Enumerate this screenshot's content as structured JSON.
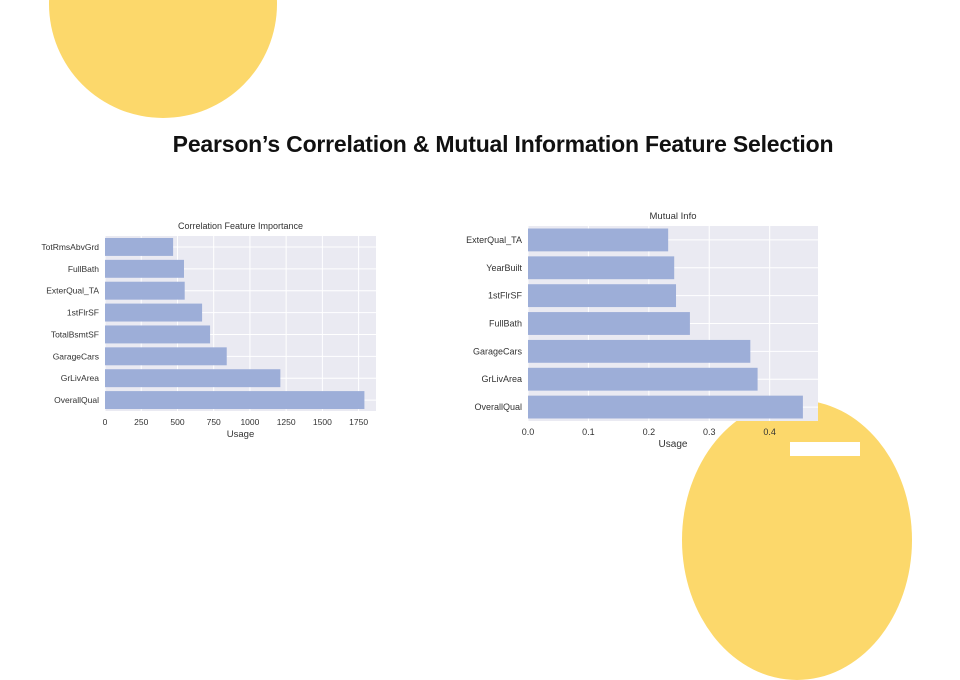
{
  "slide": {
    "title": "Pearson’s Correlation & Mutual Information Feature Selection"
  },
  "colors": {
    "accent_circle": "#fcd86b",
    "bar": "#9daed8",
    "plot_bg": "#eaeaf2",
    "grid": "#ffffff",
    "text": "#333333"
  },
  "chart_data": [
    {
      "type": "bar",
      "orientation": "horizontal",
      "title": "Correlation Feature Importance",
      "xlabel": "Usage",
      "ylabel": "",
      "categories": [
        "OverallQual",
        "GrLivArea",
        "GarageCars",
        "TotalBsmtSF",
        "1stFlrSF",
        "ExterQual_TA",
        "FullBath",
        "TotRmsAbvGrd"
      ],
      "values": [
        1790,
        1210,
        840,
        725,
        670,
        550,
        545,
        470
      ],
      "xlim": [
        0,
        1870
      ],
      "xticks": [
        "0",
        "250",
        "500",
        "750",
        "1000",
        "1250",
        "1500",
        "1750"
      ],
      "grid": true
    },
    {
      "type": "bar",
      "orientation": "horizontal",
      "title": "Mutual Info",
      "xlabel": "Usage",
      "ylabel": "",
      "categories": [
        "OverallQual",
        "GrLivArea",
        "GarageCars",
        "FullBath",
        "1stFlrSF",
        "YearBuilt",
        "ExterQual_TA"
      ],
      "values": [
        0.455,
        0.38,
        0.368,
        0.268,
        0.245,
        0.242,
        0.232
      ],
      "xlim": [
        0,
        0.48
      ],
      "xticks": [
        "0.0",
        "0.1",
        "0.2",
        "0.3",
        "0.4"
      ],
      "grid": true
    }
  ]
}
